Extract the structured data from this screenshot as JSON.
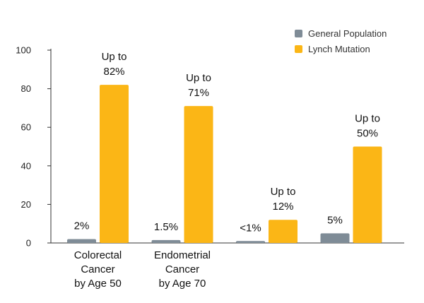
{
  "chart_data": {
    "type": "bar",
    "categories": [
      [
        "Colorectal",
        "Cancer",
        "by Age 50"
      ],
      [
        "Endometrial",
        "Cancer",
        "by Age 70"
      ],
      [],
      []
    ],
    "series": [
      {
        "name": "General Population",
        "color": "#7f8c97",
        "values": [
          2,
          1.5,
          1,
          5
        ],
        "labels": [
          [
            "2%"
          ],
          [
            "1.5%"
          ],
          [
            "<1%"
          ],
          [
            "5%"
          ]
        ]
      },
      {
        "name": "Lynch Mutation",
        "color": "#fbb616",
        "values": [
          82,
          71,
          12,
          50
        ],
        "labels": [
          [
            "Up to",
            "82%"
          ],
          [
            "Up to",
            "71%"
          ],
          [
            "Up to",
            "12%"
          ],
          [
            "Up to",
            "50%"
          ]
        ]
      }
    ],
    "ylim": [
      0,
      100
    ],
    "yticks": [
      "0",
      "20",
      "40",
      "60",
      "80",
      "100"
    ],
    "grid": false,
    "legend_position": "top-right"
  }
}
